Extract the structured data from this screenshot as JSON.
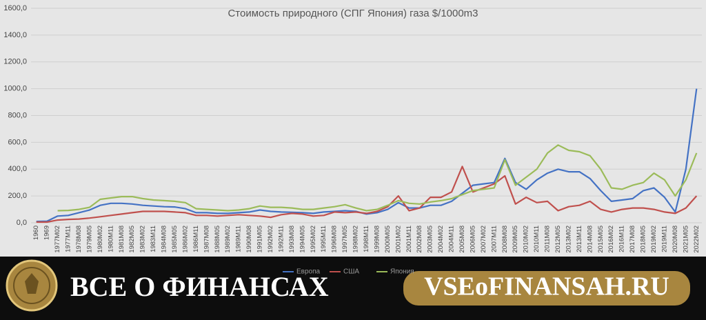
{
  "chart_data": {
    "type": "line",
    "title": "Стоимость природного (СПГ Япония) газа $/1000m3",
    "categories": [
      "1960",
      "1969",
      "1977M02",
      "1977M11",
      "1978M08",
      "1979M05",
      "1980M02",
      "1980M11",
      "1981M08",
      "1982M05",
      "1983M02",
      "1983M11",
      "1984M08",
      "1985M05",
      "1986M02",
      "1986M11",
      "1987M08",
      "1988M05",
      "1989M02",
      "1989M11",
      "1990M08",
      "1991M05",
      "1992M02",
      "1992M11",
      "1993M08",
      "1994M05",
      "1995M02",
      "1995M11",
      "1996M08",
      "1997M05",
      "1998M02",
      "1998M11",
      "1999M08",
      "2000M05",
      "2001M02",
      "2001M11",
      "2002M08",
      "2003M05",
      "2004M02",
      "2004M11",
      "2005M08",
      "2006M05",
      "2007M02",
      "2007M11",
      "2008M08",
      "2009M05",
      "2010M02",
      "2010M11",
      "2011M08",
      "2012M05",
      "2013M02",
      "2013M11",
      "2014M08",
      "2015M05",
      "2016M02",
      "2016M11",
      "2017M08",
      "2018M05",
      "2019M02",
      "2019M11",
      "2020M08",
      "2021M05",
      "2022M02"
    ],
    "series": [
      {
        "name": "Европа",
        "color": "#4472c4",
        "values": [
          10,
          12,
          50,
          55,
          75,
          95,
          130,
          145,
          145,
          140,
          130,
          125,
          120,
          118,
          105,
          75,
          75,
          70,
          70,
          75,
          80,
          95,
          85,
          80,
          78,
          75,
          70,
          80,
          85,
          90,
          85,
          65,
          75,
          100,
          150,
          110,
          110,
          130,
          130,
          160,
          220,
          280,
          290,
          300,
          480,
          300,
          250,
          320,
          370,
          400,
          380,
          380,
          330,
          240,
          160,
          170,
          180,
          240,
          260,
          190,
          80,
          400,
          1000
        ]
      },
      {
        "name": "США",
        "color": "#c0504d",
        "values": [
          5,
          5,
          20,
          25,
          28,
          35,
          45,
          55,
          65,
          75,
          85,
          85,
          85,
          80,
          75,
          55,
          55,
          50,
          55,
          60,
          55,
          50,
          40,
          60,
          70,
          65,
          50,
          55,
          80,
          75,
          80,
          70,
          85,
          120,
          200,
          90,
          110,
          190,
          190,
          230,
          420,
          230,
          260,
          290,
          350,
          140,
          190,
          150,
          160,
          90,
          120,
          130,
          160,
          100,
          80,
          100,
          110,
          110,
          100,
          80,
          70,
          110,
          200
        ]
      },
      {
        "name": "Япония",
        "color": "#9bbb59",
        "values": [
          null,
          null,
          90,
          92,
          100,
          115,
          175,
          185,
          195,
          195,
          180,
          170,
          165,
          160,
          150,
          105,
          100,
          95,
          90,
          95,
          105,
          125,
          115,
          115,
          110,
          100,
          100,
          110,
          120,
          135,
          110,
          90,
          100,
          130,
          165,
          145,
          140,
          155,
          165,
          180,
          210,
          240,
          250,
          260,
          470,
          280,
          340,
          400,
          520,
          580,
          540,
          530,
          500,
          400,
          260,
          250,
          280,
          300,
          370,
          320,
          200,
          320,
          520
        ]
      }
    ],
    "ylim": [
      0,
      1600
    ],
    "yticks": [
      {
        "value": 0,
        "label": "0,0"
      },
      {
        "value": 200,
        "label": "200,0"
      },
      {
        "value": 400,
        "label": "400,0"
      },
      {
        "value": 600,
        "label": "600,0"
      },
      {
        "value": 800,
        "label": "800,0"
      },
      {
        "value": 1000,
        "label": "1000,0"
      },
      {
        "value": 1200,
        "label": "1200,0"
      },
      {
        "value": 1400,
        "label": "1400,0"
      },
      {
        "value": 1600,
        "label": "1600,0"
      }
    ],
    "grid": true
  },
  "banner": {
    "left": "ВСЕ О ФИНАНСАХ",
    "right": "VSEoFINANSAH.RU"
  }
}
